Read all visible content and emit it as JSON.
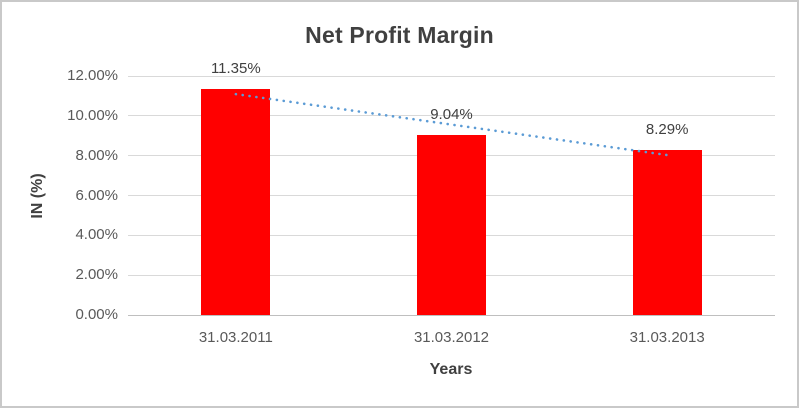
{
  "chart": {
    "title": "Net Profit Margin",
    "x_axis_title": "Years",
    "y_axis_title": "IN (%)"
  },
  "chart_data": {
    "type": "bar",
    "title": "Net Profit Margin",
    "xlabel": "Years",
    "ylabel": "IN (%)",
    "categories": [
      "31.03.2011",
      "31.03.2012",
      "31.03.2013"
    ],
    "values": [
      11.35,
      9.04,
      8.29
    ],
    "data_labels": [
      "11.35%",
      "9.04%",
      "8.29%"
    ],
    "ylim": [
      0,
      12
    ],
    "y_tick_step": 2,
    "y_tick_values": [
      0,
      2,
      4,
      6,
      8,
      10,
      12
    ],
    "y_tick_labels": [
      "0.00%",
      "2.00%",
      "4.00%",
      "6.00%",
      "8.00%",
      "10.00%",
      "12.00%"
    ],
    "grid": true,
    "legend": false,
    "bar_color": "#ff0000",
    "trendline": {
      "type": "linear",
      "style": "dotted",
      "color": "#5b9bd5",
      "fitted_values": [
        11.09,
        9.56,
        8.03
      ]
    },
    "gridline_color": "#d9d9d9",
    "axis_line_color": "#bfbfbf",
    "title_color": "#404040",
    "tick_label_color": "#595959"
  }
}
